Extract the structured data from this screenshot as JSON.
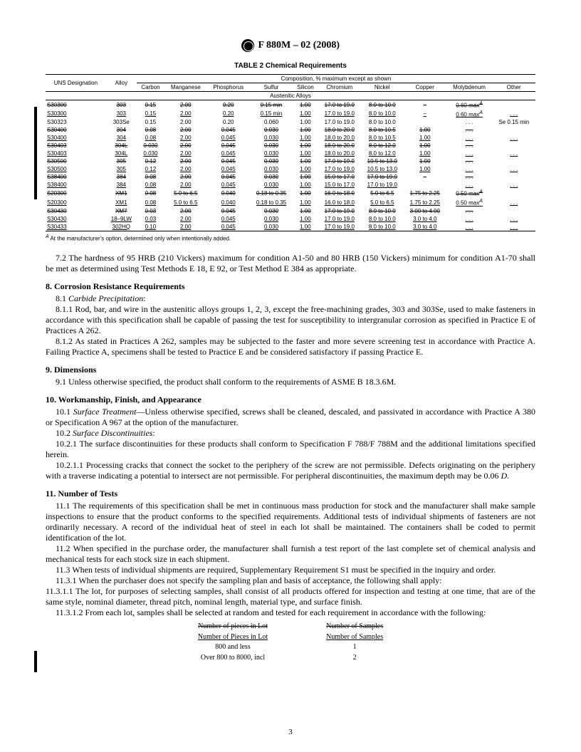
{
  "header": "F 880M – 02 (2008)",
  "tableTitle": "TABLE 2   Chemical Requirements",
  "compHeader": "Composition, % maximum except as shown",
  "groupHeader": "Austenitic Alloys",
  "cols": [
    "UNS Designation",
    "Alloy",
    "Carbon",
    "Manganese",
    "Phosphorus",
    "Sulfur",
    "Silicon",
    "Chromium",
    "Nickel",
    "Copper",
    "Molybdenum",
    "Other"
  ],
  "rows": [
    {
      "s": true,
      "c": [
        "S30300",
        "303",
        "0.15",
        "2.00",
        "0.20",
        "0.15 min",
        "1.00",
        "17.0 to 19.0",
        "8.0 to 10.0",
        "–",
        "0.60 max",
        "",
        "A"
      ]
    },
    {
      "u": true,
      "c": [
        "S30300",
        "303",
        "0.15",
        "2.00",
        "0.20",
        "0.15 min",
        "1.00",
        "17.0 to 19.0",
        "8.0 to 10.0",
        "–",
        "0.60 max",
        ". . .",
        "A"
      ]
    },
    {
      "c": [
        "S30323",
        "303Se",
        "0.15",
        "2.00",
        "0.20",
        "0.060",
        "1.00",
        "17.0 to 19.0",
        "8.0 to 10.0",
        "",
        ". . .",
        "Se 0.15 min",
        ""
      ]
    },
    {
      "s": true,
      "c": [
        "S30400",
        "304",
        "0.08",
        "2.00",
        "0.045",
        "0.030",
        "1.00",
        "18.0 to 20.0",
        "8.0 to 10.5",
        "1.00",
        ". . .",
        "",
        ""
      ]
    },
    {
      "u": true,
      "c": [
        "S30400",
        "304",
        "0.08",
        "2.00",
        "0.045",
        "0.030",
        "1.00",
        "18.0 to 20.0",
        "8.0 to 10.5",
        "1.00",
        ". . .",
        ". . .",
        ""
      ]
    },
    {
      "s": true,
      "c": [
        "S30403",
        "304L",
        "0.030",
        "2.00",
        "0.045",
        "0.030",
        "1.00",
        "18.0 to 20.0",
        "8.0 to 12.0",
        "1.00",
        ". . .",
        "",
        ""
      ]
    },
    {
      "u": true,
      "c": [
        "S30403",
        "304L",
        "0.030",
        "2.00",
        "0.045",
        "0.030",
        "1.00",
        "18.0 to 20.0",
        "8.0 to 12.0",
        "1.00",
        ". . .",
        ". . .",
        ""
      ]
    },
    {
      "s": true,
      "c": [
        "S30500",
        "305",
        "0.12",
        "2.00",
        "0.045",
        "0.030",
        "1.00",
        "17.0 to 19.0",
        "10.5 to 13.0",
        "1.00",
        ". . .",
        "",
        ""
      ]
    },
    {
      "u": true,
      "c": [
        "S30500",
        "305",
        "0.12",
        "2.00",
        "0.045",
        "0.030",
        "1.00",
        "17.0 to 19.0",
        "10.5 to 13.0",
        "1.00",
        ". . .",
        ". . .",
        ""
      ]
    },
    {
      "s": true,
      "c": [
        "S38400",
        "384",
        "0.08",
        "2.00",
        "0.045",
        "0.030",
        "1.00",
        "15.0 to 17.0",
        "17.0 to 19.0",
        "–",
        ". . .",
        "",
        ""
      ]
    },
    {
      "u": true,
      "c": [
        "S38400",
        "384",
        "0.08",
        "2.00",
        "0.045",
        "0.030",
        "1.00",
        "15.0 to 17.0",
        "17.0 to 19.0",
        "",
        ". . .",
        ". . .",
        ""
      ]
    },
    {
      "s": true,
      "c": [
        "S20300",
        "XM1",
        "0.08",
        "5.0 to 6.5",
        "0.040",
        "0.18 to 0.35",
        "1.00",
        "16.0 to 18.0",
        "5.0 to 6.5",
        "1.75 to 2.25",
        "0.50 max",
        "",
        "A"
      ]
    },
    {
      "u": true,
      "c": [
        "S20300",
        "XM1",
        "0.08",
        "5.0 to 6.5",
        "0.040",
        "0.18 to 0.35",
        "1.00",
        "16.0 to 18.0",
        "5.0 to 6.5",
        "1.75 to 2.25",
        "0.50 max",
        ". . .",
        "A"
      ]
    },
    {
      "s": true,
      "c": [
        "S30430",
        "XM7",
        "0.03",
        "2.00",
        "0.045",
        "0.030",
        "1.00",
        "17.0 to 19.0",
        "8.0 to 10.0",
        "3.00 to 4.00",
        ". . .",
        "",
        ""
      ]
    },
    {
      "u": true,
      "c": [
        "S30430",
        "18–9LW",
        "0.03",
        "2.00",
        "0.045",
        "0.030",
        "1.00",
        "17.0 to 19.0",
        "8.0 to 10.0",
        "3.0 to 4.0",
        ". . .",
        ". . .",
        ""
      ]
    },
    {
      "u": true,
      "bb": true,
      "c": [
        "S30433",
        "302HQ",
        "0.10",
        "2.00",
        "0.045",
        "0.030",
        "1.00",
        "17.0 to 19.0",
        "8.0 to 10.0",
        "3.0 to 4.0",
        ". . .",
        ". . .",
        ""
      ]
    }
  ],
  "footnote": " At the manufacturer's option, determined only when intentionally added.",
  "footnoteSup": "A",
  "p72": "7.2 The hardness of 95 HRB (210 Vickers) maximum for condition A1-50 and 80 HRB (150 Vickers) minimum for condition A1-70 shall be met as determined using Test Methods E 18, E 92, or Test Method E 384 as appropriate.",
  "s8t": "8. Corrosion Resistance Requirements",
  "p81l": "8.1 ",
  "p81i": "Carbide Precipitation",
  "p811": "8.1.1 Rod, bar, and wire in the austenitic alloys groups 1, 2, 3, except the free-machining grades, 303 and 303Se, used to make fasteners in accordance with this specification shall be capable of passing the test for susceptibility to intergranular corrosion as specified in Practice E of Practices A 262.",
  "p812": "8.1.2 As stated in Practices A 262, samples may be subjected to the faster and more severe screening test in accordance with Practice A. Failing Practice A, specimens shall be tested to Practice E and be considered satisfactory if passing Practice E.",
  "s9t": "9. Dimensions",
  "p91": "9.1 Unless otherwise specified, the product shall conform to the requirements of ASME B 18.3.6M.",
  "s10t": "10. Workmanship, Finish, and Appearance",
  "p101a": "10.1 ",
  "p101i": "Surface Treatment",
  "p101b": "—Unless otherwise specified, screws shall be cleaned, descaled, and passivated in accordance with Practice A 380 or Specification A 967 at the option of the manufacturer.",
  "p102a": "10.2 ",
  "p102i": "Surface Discontinuities",
  "p1021": "10.2.1 The surface discontinuities for these products shall conform to Specification F 788/F 788M and the additional limitations specified herein.",
  "p10211a": "10.2.1.1 Processing cracks that connect the socket to the periphery of the screw are not permissible. Defects originating on the periphery with a traverse indicating a potential to intersect are not permissible. For peripheral discontinuities, the maximum depth may be 0.06 ",
  "p10211b": "D",
  "s11t": "11. Number of Tests",
  "p111": "11.1 The requirements of this specification shall be met in continuous mass production for stock and the manufacturer shall make sample inspections to ensure that the product conforms to the specified requirements. Additional tests of individual shipments of fasteners are not ordinarily necessary. A record of the individual heat of steel in each lot shall be maintained. The containers shall be coded to permit identification of the lot.",
  "p112": "11.2 When specified in the purchase order, the manufacturer shall furnish a test report of the last complete set of chemical analysis and mechanical tests for each stock size in each shipment.",
  "p113": "11.3 When tests of individual shipments are required, Supplementary Requirement S1 must be specified in the inquiry and order.",
  "p1131": "11.3.1 When the purchaser does not specify the sampling plan and basis of acceptance, the following shall apply:",
  "p11311": "11.3.1.1 The lot, for purposes of selecting samples, shall consist of all products offered for inspection and testing at one time, that are of the same style, nominal diameter, thread pitch, nominal length, material type, and surface finish.",
  "p11312": "11.3.1.2 From each lot, samples shall be selected at random and tested for each requirement in accordance with the following:",
  "sampleTable": {
    "h1s": "Number of pieces in Lot",
    "h1u": "Number of Pieces in Lot",
    "h2": "Number of Samples",
    "r1": [
      "800 and less",
      "1"
    ],
    "r2": [
      "Over 800 to 8000, incl",
      "2"
    ]
  },
  "pageNum": "3"
}
